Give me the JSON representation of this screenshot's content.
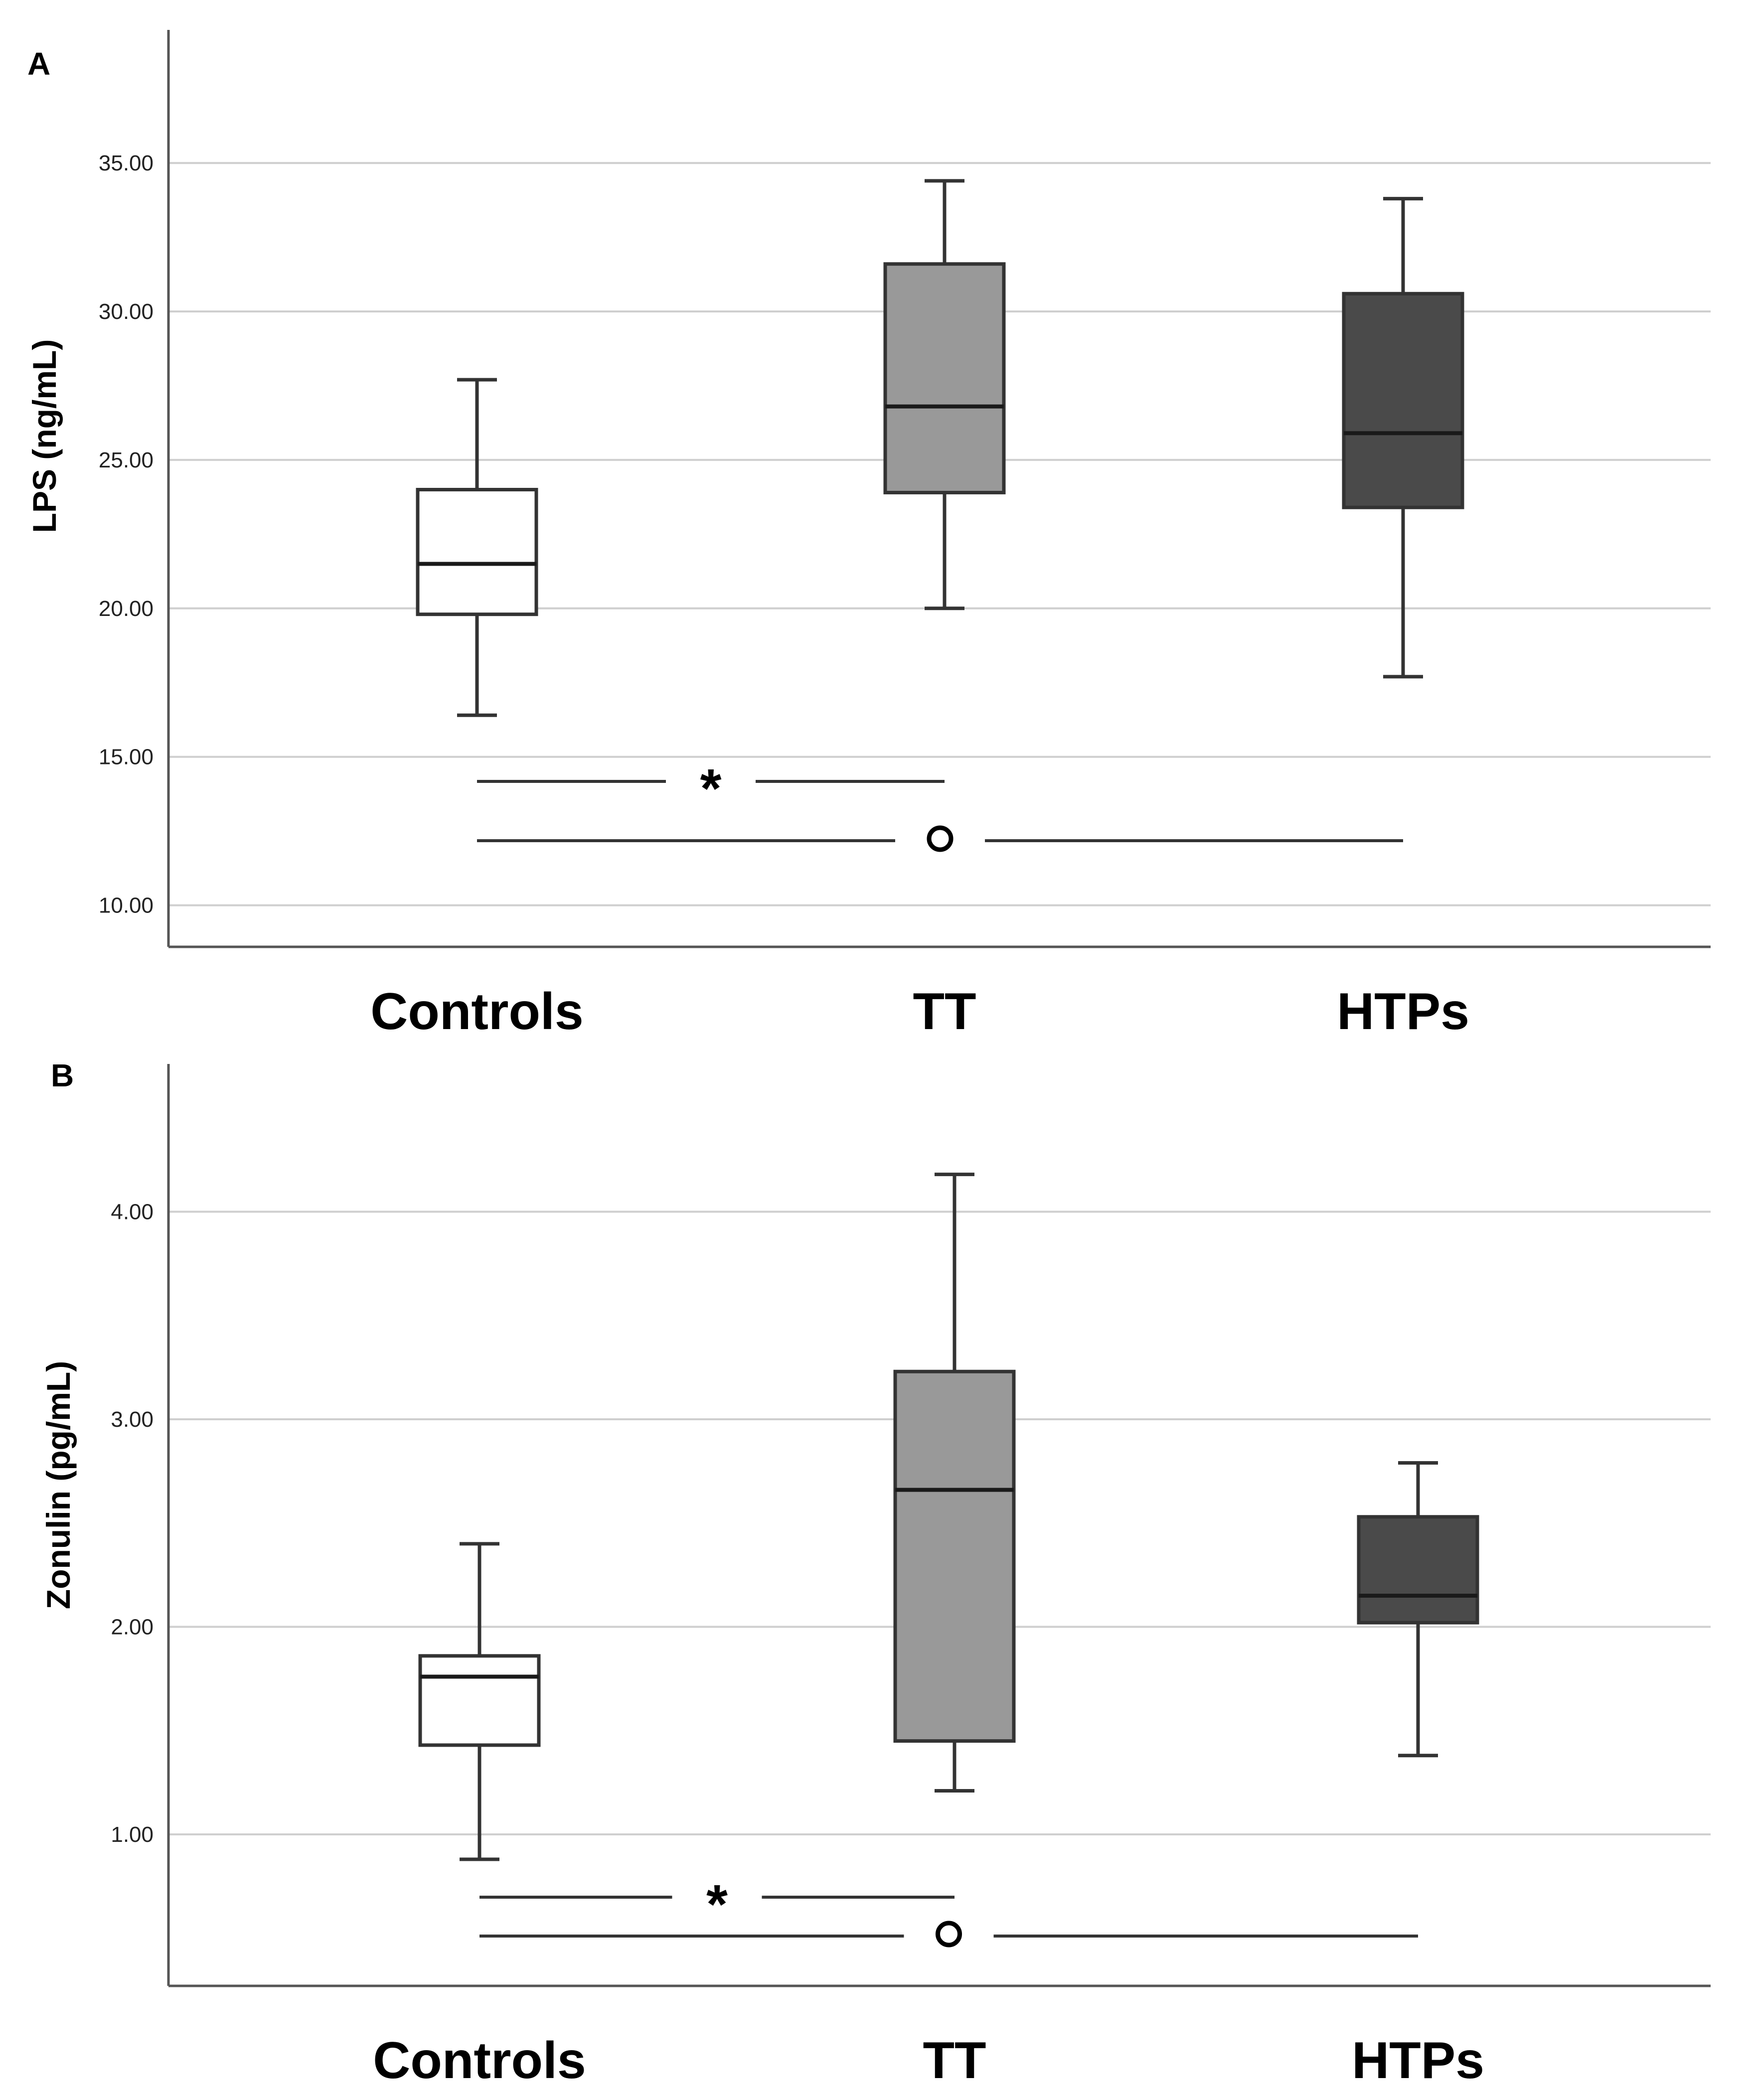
{
  "chart_data": [
    {
      "type": "box",
      "panel_label": "A",
      "ylabel": "LPS (ng/mL)",
      "categories": [
        "Controls",
        "TT",
        "HTPs"
      ],
      "y_ticks": [
        "10.00",
        "15.00",
        "20.00",
        "25.00",
        "30.00",
        "35.00"
      ],
      "ylim": [
        8.6,
        39.4
      ],
      "grid": true,
      "series": [
        {
          "category": "Controls",
          "min": 16.4,
          "q1": 19.8,
          "median": 21.5,
          "q3": 24.0,
          "max": 27.7,
          "fill": "#ffffff"
        },
        {
          "category": "TT",
          "min": 20.0,
          "q1": 23.9,
          "median": 26.8,
          "q3": 31.6,
          "max": 34.4,
          "fill": "#999999"
        },
        {
          "category": "HTPs",
          "min": 17.7,
          "q1": 23.4,
          "median": 25.9,
          "q3": 30.6,
          "max": 33.8,
          "fill": "#4a4a4a"
        }
      ],
      "significance": [
        {
          "from": "Controls",
          "to": "TT",
          "symbol": "*"
        },
        {
          "from": "Controls",
          "to": "HTPs",
          "symbol": "°"
        }
      ]
    },
    {
      "type": "box",
      "panel_label": "B",
      "ylabel": "Zonulin (pg/mL)",
      "categories": [
        "Controls",
        "TT",
        "HTPs"
      ],
      "y_ticks": [
        "1.00",
        "2.00",
        "3.00",
        "4.00"
      ],
      "ylim": [
        0.27,
        4.7
      ],
      "grid": true,
      "series": [
        {
          "category": "Controls",
          "min": 0.88,
          "q1": 1.43,
          "median": 1.76,
          "q3": 1.86,
          "max": 2.4,
          "fill": "#ffffff"
        },
        {
          "category": "TT",
          "min": 1.21,
          "q1": 1.45,
          "median": 2.66,
          "q3": 3.23,
          "max": 4.18,
          "fill": "#999999"
        },
        {
          "category": "HTPs",
          "min": 1.38,
          "q1": 2.02,
          "median": 2.15,
          "q3": 2.53,
          "max": 2.79,
          "fill": "#4a4a4a"
        }
      ],
      "significance": [
        {
          "from": "Controls",
          "to": "TT",
          "symbol": "*"
        },
        {
          "from": "Controls",
          "to": "HTPs",
          "symbol": "°"
        }
      ]
    }
  ]
}
